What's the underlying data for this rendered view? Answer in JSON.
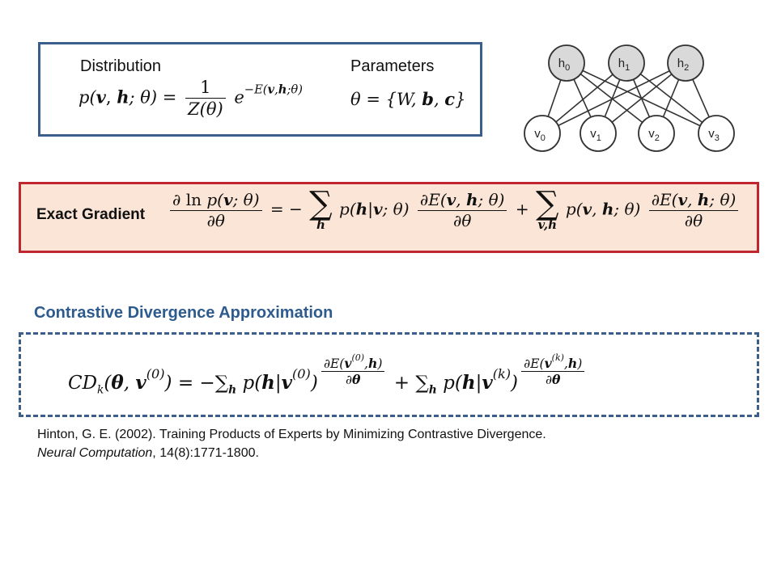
{
  "distribution": {
    "label": "Distribution",
    "lhs": "p(v, h; θ) =",
    "frac_num": "1",
    "frac_den": "Z(θ)",
    "exp_base": "e",
    "exponent": "−E(v,h;θ)"
  },
  "parameters": {
    "label": "Parameters",
    "formula": "θ = {W, b, c}"
  },
  "rbm": {
    "hidden": [
      "h0",
      "h1",
      "h2"
    ],
    "visible": [
      "v0",
      "v1",
      "v2",
      "v3"
    ],
    "colors": {
      "hidden_fill": "#d9d9d9",
      "visible_fill": "#ffffff",
      "stroke": "#333333"
    }
  },
  "exact_gradient": {
    "label": "Exact Gradient",
    "lhs_num": "∂ ln p(v; θ)",
    "lhs_den": "∂θ",
    "eq": "= −",
    "sum1_sub": "h",
    "term1": "p(h|v; θ)",
    "dE_num": "∂E(v, h; θ)",
    "dE_den": "∂θ",
    "plus": "+",
    "sum2_sub": "v,h",
    "term2": "p(v, h; θ)"
  },
  "contrastive": {
    "title": "Contrastive Divergence Approximation",
    "formula": "CDk(θ, v(0)) = −Σh p(h|v(0)) ∂E(v(0),h)/∂θ + Σh p(h|v(k)) ∂E(v(k),h)/∂θ"
  },
  "reference": {
    "line1": "Hinton, G. E. (2002). Training Products of Experts by Minimizing Contrastive Divergence.",
    "journal": "Neural Computation",
    "line2_rest": ", 14(8):1771-1800."
  },
  "colors": {
    "blue_border": "#3b5f8a",
    "red_border": "#c0262d",
    "gradient_fill": "#fbe5d6",
    "title_blue": "#2e5b8e"
  }
}
